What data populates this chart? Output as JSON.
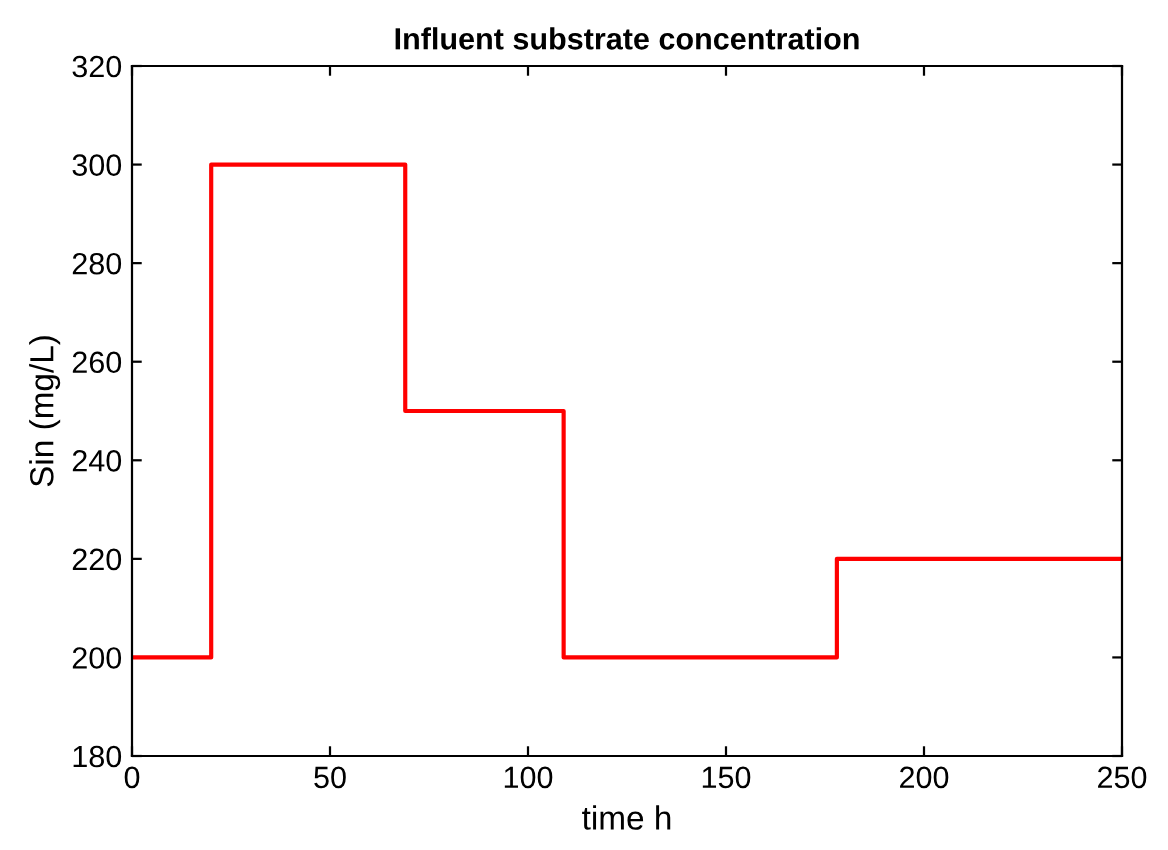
{
  "chart_data": {
    "type": "step",
    "title": "Influent substrate concentration",
    "xlabel": "time h",
    "ylabel": "Sin (mg/L)",
    "x": [
      0,
      20,
      69,
      109,
      178,
      250
    ],
    "series": [
      {
        "color": "#ff0000",
        "values": [
          200,
          300,
          250,
          200,
          220,
          220
        ]
      }
    ],
    "xlim": [
      0,
      250
    ],
    "xticks": [
      0,
      50,
      100,
      150,
      200,
      250
    ],
    "ylim": [
      180,
      320
    ],
    "yticks": [
      180,
      200,
      220,
      240,
      260,
      280,
      300,
      320
    ],
    "grid": false,
    "legend": false
  }
}
